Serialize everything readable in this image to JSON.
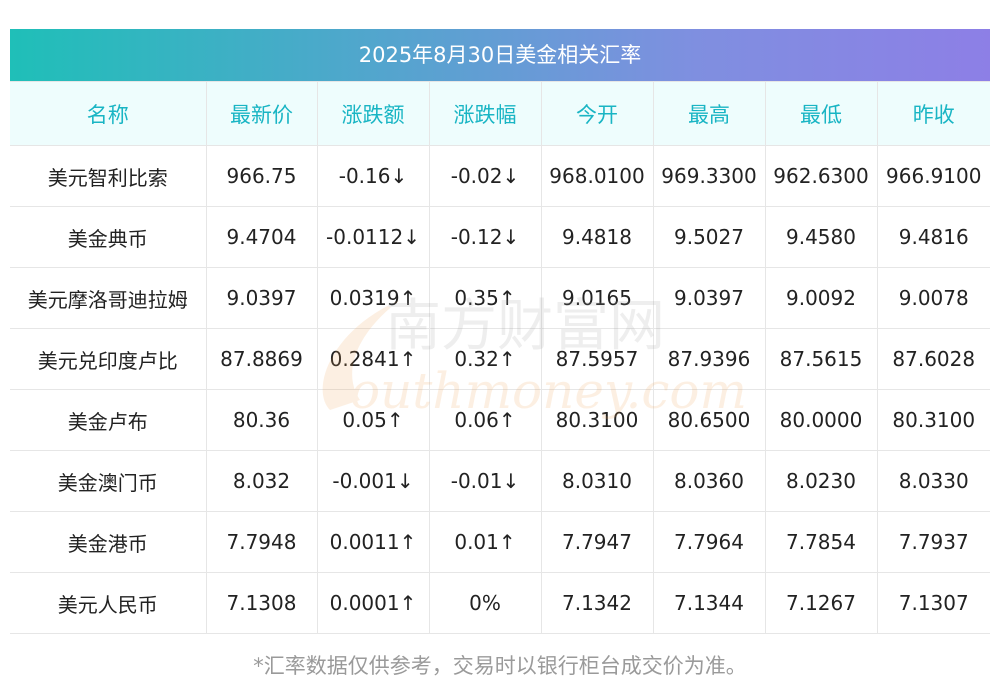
{
  "title": "2025年8月30日美金相关汇率",
  "columns": [
    "名称",
    "最新价",
    "涨跌额",
    "涨跌幅",
    "今开",
    "最高",
    "最低",
    "昨收"
  ],
  "rows": [
    {
      "name": "美元智利比索",
      "latest": "966.75",
      "change": "-0.16↓",
      "pct": "-0.02↓",
      "open": "968.0100",
      "high": "969.3300",
      "low": "962.6300",
      "prev": "966.9100",
      "trend": "down"
    },
    {
      "name": "美金典币",
      "latest": "9.4704",
      "change": "-0.0112↓",
      "pct": "-0.12↓",
      "open": "9.4818",
      "high": "9.5027",
      "low": "9.4580",
      "prev": "9.4816",
      "trend": "down"
    },
    {
      "name": "美元摩洛哥迪拉姆",
      "latest": "9.0397",
      "change": "0.0319↑",
      "pct": "0.35↑",
      "open": "9.0165",
      "high": "9.0397",
      "low": "9.0092",
      "prev": "9.0078",
      "trend": "up"
    },
    {
      "name": "美元兑印度卢比",
      "latest": "87.8869",
      "change": "0.2841↑",
      "pct": "0.32↑",
      "open": "87.5957",
      "high": "87.9396",
      "low": "87.5615",
      "prev": "87.6028",
      "trend": "up"
    },
    {
      "name": "美金卢布",
      "latest": "80.36",
      "change": "0.05↑",
      "pct": "0.06↑",
      "open": "80.3100",
      "high": "80.6500",
      "low": "80.0000",
      "prev": "80.3100",
      "trend": "up"
    },
    {
      "name": "美金澳门币",
      "latest": "8.032",
      "change": "-0.001↓",
      "pct": "-0.01↓",
      "open": "8.0310",
      "high": "8.0360",
      "low": "8.0230",
      "prev": "8.0330",
      "trend": "down"
    },
    {
      "name": "美金港币",
      "latest": "7.7948",
      "change": "0.0011↑",
      "pct": "0.01↑",
      "open": "7.7947",
      "high": "7.7964",
      "low": "7.7854",
      "prev": "7.7937",
      "trend": "up"
    },
    {
      "name": "美元人民币",
      "latest": "7.1308",
      "change": "0.0001↑",
      "pct": "0%",
      "open": "7.1342",
      "high": "7.1344",
      "low": "7.1267",
      "prev": "7.1307",
      "trend": "mixed"
    }
  ],
  "watermark": {
    "line1": "南方财富网",
    "line2": "outhmoney.com"
  },
  "footnote": "*汇率数据仅供参考，交易时以银行柜台成交价为准。",
  "colors": {
    "up": "#e8262a",
    "down": "#2b9134",
    "header_text": "#19b5c4",
    "title_gradient_start": "#1fbfb8",
    "title_gradient_end": "#8d7fe6"
  }
}
